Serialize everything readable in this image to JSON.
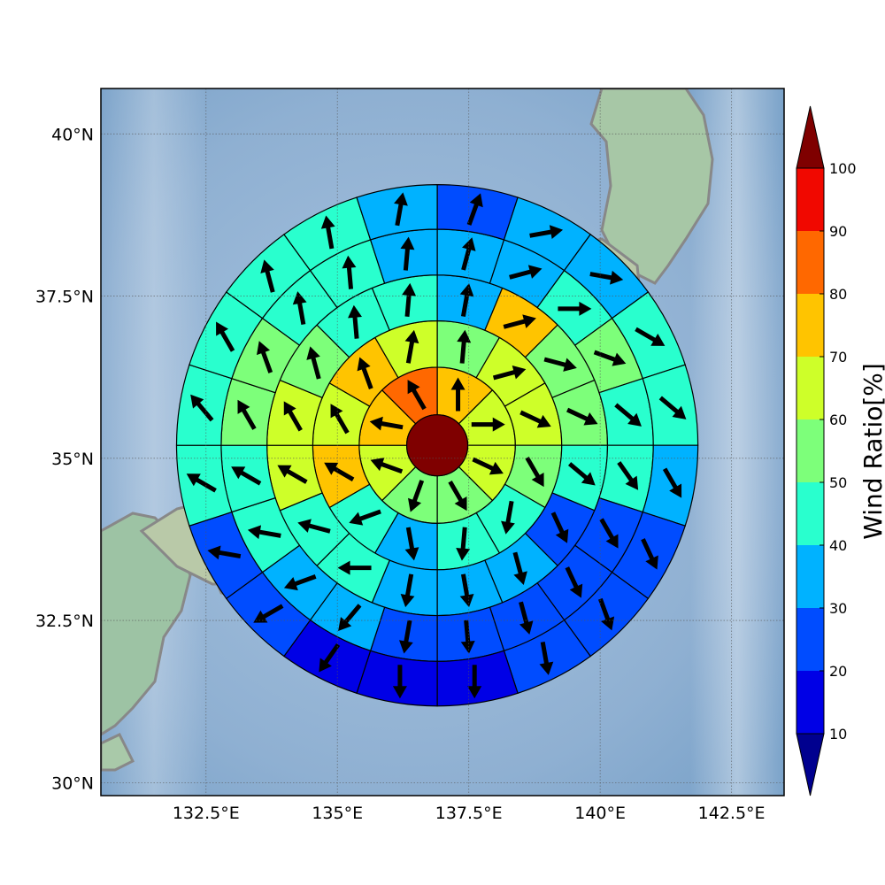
{
  "chart_data": {
    "type": "heatmap",
    "title": "",
    "x_axis": {
      "range": [
        130.5,
        143.5
      ],
      "tick_values": [
        132.5,
        135,
        137.5,
        140,
        142.5
      ],
      "tick_labels": [
        "132.5°E",
        "135°E",
        "137.5°E",
        "140°E",
        "142.5°E"
      ]
    },
    "y_axis": {
      "range": [
        29.8,
        40.7
      ],
      "tick_values": [
        30,
        32.5,
        35,
        37.5,
        40
      ],
      "tick_labels": [
        "30°N",
        "32.5°N",
        "35°N",
        "37.5°N",
        "40°N"
      ]
    },
    "grid": true,
    "center": {
      "lon": 136.9,
      "lat": 35.2,
      "value": 100
    },
    "rings": [
      {
        "r_inner_deg": 0.52,
        "r_outer_deg": 1.33,
        "sectors": 8,
        "values": [
          75,
          60,
          60,
          55,
          55,
          60,
          75,
          85
        ],
        "arrow_dirs": [
          0,
          90,
          115,
          150,
          200,
          290,
          280,
          330
        ]
      },
      {
        "r_inner_deg": 1.33,
        "r_outer_deg": 2.12,
        "sectors": 12,
        "values": [
          50,
          60,
          60,
          55,
          45,
          45,
          35,
          45,
          75,
          65,
          75,
          65
        ],
        "arrow_dirs": [
          5,
          75,
          115,
          150,
          190,
          185,
          170,
          250,
          300,
          330,
          340,
          10
        ]
      },
      {
        "r_inner_deg": 2.12,
        "r_outer_deg": 2.9,
        "sectors": 16,
        "values": [
          35,
          75,
          55,
          55,
          45,
          25,
          35,
          35,
          35,
          45,
          45,
          65,
          65,
          55,
          45,
          40
        ],
        "arrow_dirs": [
          10,
          75,
          105,
          115,
          130,
          155,
          165,
          170,
          190,
          270,
          285,
          300,
          330,
          345,
          355,
          5
        ]
      },
      {
        "r_inner_deg": 2.9,
        "r_outer_deg": 3.68,
        "sectors": 20,
        "values": [
          35,
          35,
          45,
          55,
          45,
          45,
          25,
          25,
          25,
          25,
          25,
          35,
          35,
          45,
          45,
          55,
          55,
          45,
          45,
          35
        ],
        "arrow_dirs": [
          15,
          75,
          90,
          110,
          130,
          145,
          150,
          155,
          165,
          175,
          190,
          220,
          250,
          280,
          300,
          330,
          340,
          350,
          355,
          5
        ]
      },
      {
        "r_inner_deg": 3.68,
        "r_outer_deg": 4.44,
        "sectors": 20,
        "values": [
          25,
          35,
          35,
          45,
          45,
          35,
          25,
          25,
          25,
          15,
          15,
          15,
          25,
          25,
          45,
          45,
          45,
          45,
          45,
          35
        ],
        "arrow_dirs": [
          20,
          80,
          100,
          120,
          130,
          150,
          155,
          160,
          170,
          180,
          180,
          215,
          240,
          280,
          300,
          320,
          330,
          345,
          350,
          10
        ]
      }
    ],
    "colorbar": {
      "label": "Wind Ratio[%]",
      "ticks": [
        10,
        20,
        30,
        40,
        50,
        60,
        70,
        80,
        90,
        100
      ],
      "levels": [
        10,
        20,
        30,
        40,
        50,
        60,
        70,
        80,
        90,
        100
      ],
      "colors": [
        "#0000e6",
        "#004cff",
        "#00b2ff",
        "#29ffce",
        "#7dff7a",
        "#ceff29",
        "#ffc400",
        "#ff6800",
        "#f10800"
      ],
      "under_color": "#00008f",
      "over_color": "#7f0000",
      "extend": "both"
    }
  },
  "colors": {
    "sea": "#8fb3d4",
    "land": "#9fc3a6",
    "coast": "#8a8a8a",
    "arrow": "#000000"
  }
}
